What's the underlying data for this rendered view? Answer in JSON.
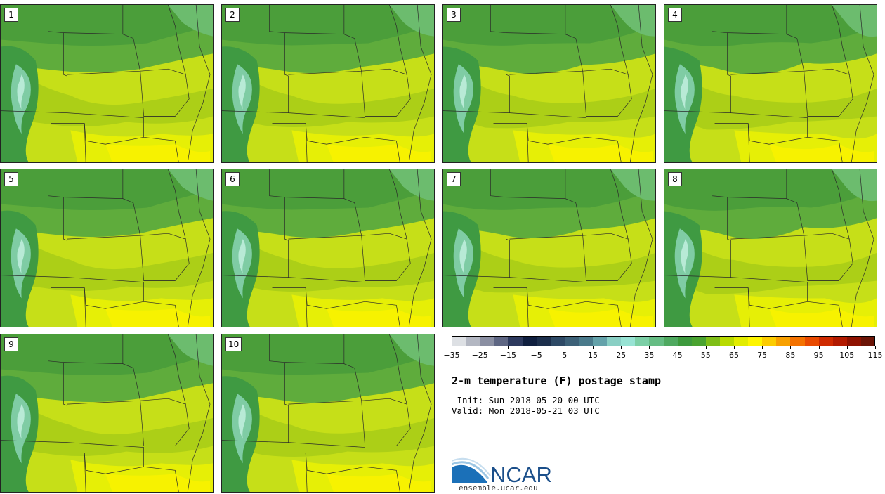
{
  "panels": [
    {
      "label": "1"
    },
    {
      "label": "2"
    },
    {
      "label": "3"
    },
    {
      "label": "4"
    },
    {
      "label": "5"
    },
    {
      "label": "6"
    },
    {
      "label": "7"
    },
    {
      "label": "8"
    },
    {
      "label": "9"
    },
    {
      "label": "10"
    }
  ],
  "colorbar": {
    "colors": [
      "#dde0e4",
      "#b3b7c2",
      "#8a8fa2",
      "#5e6683",
      "#2d3a5e",
      "#0f1f3f",
      "#1c2f4c",
      "#2e4a66",
      "#3d6178",
      "#4a7a8b",
      "#64a2aa",
      "#89cfc4",
      "#98e3d4",
      "#7ccfa6",
      "#66bd84",
      "#4fa960",
      "#3d9a3d",
      "#4aa330",
      "#7fbe17",
      "#b8da00",
      "#e2ec00",
      "#fef500",
      "#fccc00",
      "#f8a000",
      "#f47200",
      "#e94a00",
      "#cf2a00",
      "#b21a00",
      "#8e1100",
      "#6b1406"
    ],
    "ticks": [
      "-35",
      "-25",
      "-15",
      "-5",
      "5",
      "15",
      "25",
      "35",
      "45",
      "55",
      "65",
      "75",
      "85",
      "95",
      "105",
      "115"
    ]
  },
  "title": "2-m temperature (F) postage stamp",
  "init_line": " Init: Sun 2018-05-20 00 UTC",
  "valid_line": "Valid: Mon 2018-05-21 03 UTC",
  "logo": {
    "brand": "NCAR",
    "url": "ensemble.ucar.edu"
  }
}
